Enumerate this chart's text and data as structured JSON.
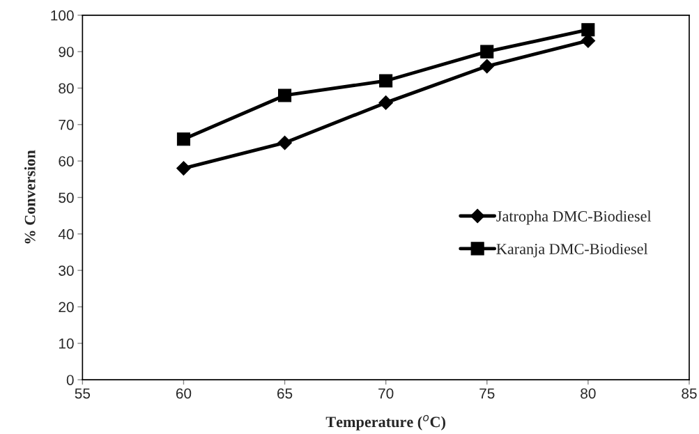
{
  "chart_data": {
    "type": "line",
    "xlabel": "Temperature ($^{o}$C)",
    "ylabel": "% Conversion",
    "x": [
      60,
      65,
      70,
      75,
      80
    ],
    "series": [
      {
        "name": "Jatropha DMC-Biodiesel",
        "color": "#000000",
        "marker": "diamond",
        "values": [
          58,
          65,
          76,
          86,
          93
        ]
      },
      {
        "name": "Karanja DMC-Biodiesel",
        "color": "#000000",
        "marker": "square",
        "values": [
          66,
          78,
          82,
          90,
          96
        ]
      }
    ],
    "xlim": [
      55,
      85
    ],
    "xticks": [
      55,
      60,
      65,
      70,
      75,
      80,
      85
    ],
    "ylim": [
      0,
      100
    ],
    "yticks": [
      0,
      10,
      20,
      30,
      40,
      50,
      60,
      70,
      80,
      90,
      100
    ],
    "grid": false,
    "legend": "right",
    "line_style": "solid"
  }
}
